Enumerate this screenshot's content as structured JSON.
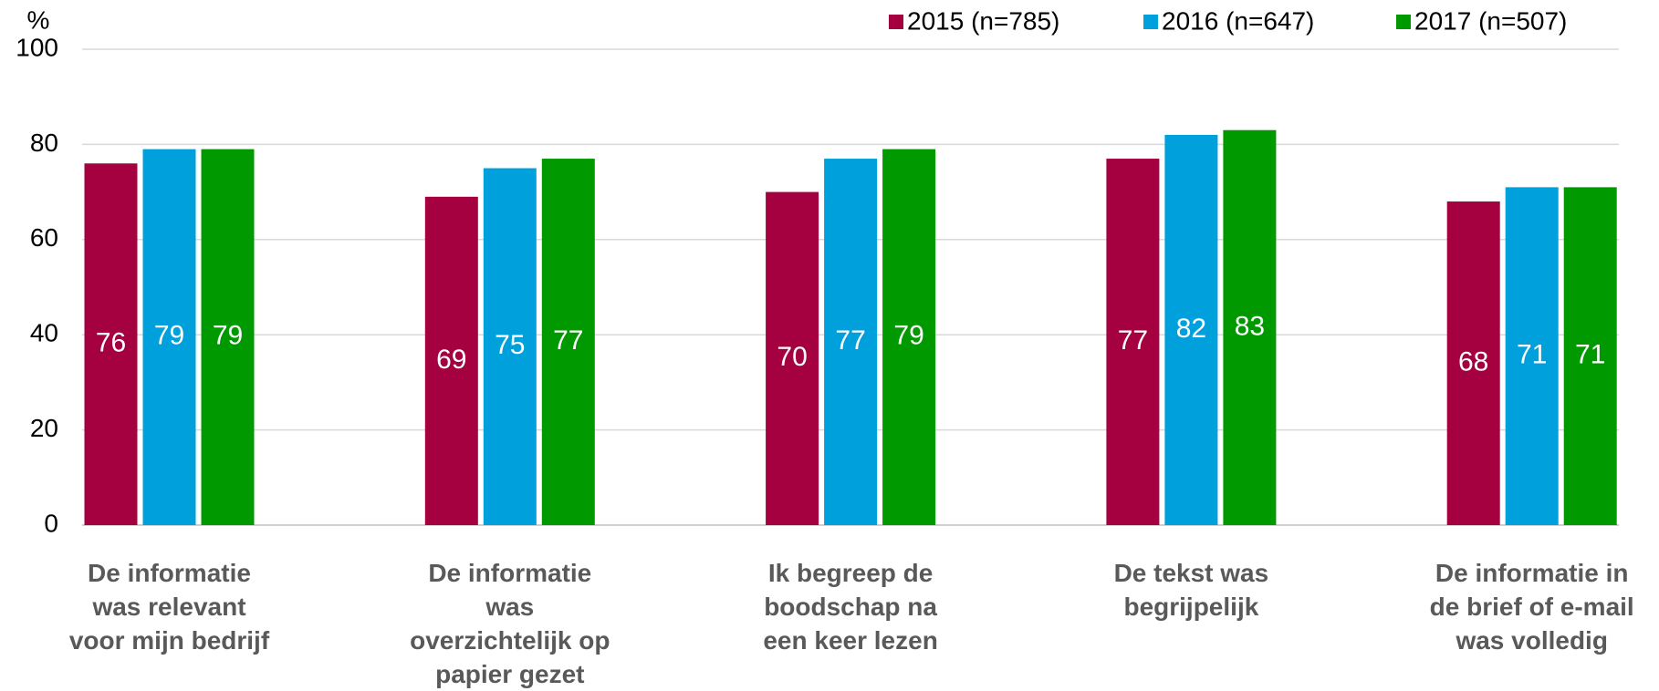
{
  "chart_data": {
    "type": "bar",
    "y_unit_label": "%",
    "categories": [
      "De informatie was relevant voor mijn bedrijf",
      "De informatie was overzichtelijk op papier gezet",
      "Ik begreep de boodschap na een keer lezen",
      "De tekst was begrijpelijk",
      "De informatie in de brief of e-mail was volledig"
    ],
    "series": [
      {
        "name": "2015 (n=785)",
        "color": "#a50040",
        "values": [
          76,
          69,
          70,
          77,
          68
        ]
      },
      {
        "name": "2016 (n=647)",
        "color": "#00a0dc",
        "values": [
          79,
          75,
          77,
          82,
          71
        ]
      },
      {
        "name": "2017 (n=507)",
        "color": "#009a00",
        "values": [
          79,
          77,
          79,
          83,
          71
        ]
      }
    ],
    "ylim": [
      0,
      100
    ],
    "yticks": [
      0,
      20,
      40,
      60,
      80,
      100
    ],
    "grid": true,
    "legend": "top-right"
  }
}
